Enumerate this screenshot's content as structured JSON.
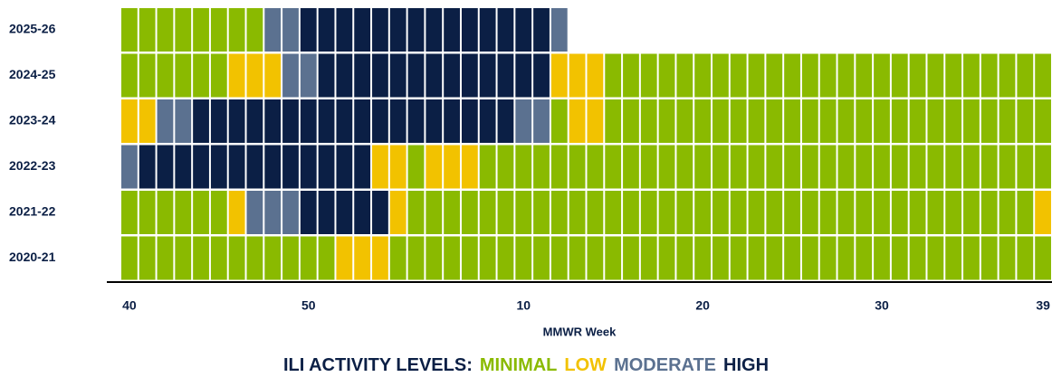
{
  "chart_data": {
    "type": "heatmap",
    "xlabel": "MMWR Week",
    "legend_title": "ILI ACTIVITY LEVELS:",
    "levels": [
      {
        "name": "MINIMAL",
        "color": "#8aba00"
      },
      {
        "name": "LOW",
        "color": "#f2c200"
      },
      {
        "name": "MODERATE",
        "color": "#5b7190"
      },
      {
        "name": "HIGH",
        "color": "#0b1f45"
      }
    ],
    "xticks": [
      {
        "value": 0,
        "label": "40"
      },
      {
        "value": 10,
        "label": "50"
      },
      {
        "value": 22,
        "label": "10"
      },
      {
        "value": 32,
        "label": "20"
      },
      {
        "value": 42,
        "label": "30"
      },
      {
        "value": 51,
        "label": "39"
      }
    ],
    "rows": [
      {
        "name": "2025-26",
        "values": [
          0,
          0,
          0,
          0,
          0,
          0,
          0,
          0,
          2,
          2,
          3,
          3,
          3,
          3,
          3,
          3,
          3,
          3,
          3,
          3,
          3,
          3,
          3,
          3,
          2,
          null,
          null,
          null,
          null,
          null,
          null,
          null,
          null,
          null,
          null,
          null,
          null,
          null,
          null,
          null,
          null,
          null,
          null,
          null,
          null,
          null,
          null,
          null,
          null,
          null,
          null,
          null
        ]
      },
      {
        "name": "2024-25",
        "values": [
          0,
          0,
          0,
          0,
          0,
          0,
          1,
          1,
          1,
          2,
          2,
          3,
          3,
          3,
          3,
          3,
          3,
          3,
          3,
          3,
          3,
          3,
          3,
          3,
          1,
          1,
          1,
          0,
          0,
          0,
          0,
          0,
          0,
          0,
          0,
          0,
          0,
          0,
          0,
          0,
          0,
          0,
          0,
          0,
          0,
          0,
          0,
          0,
          0,
          0,
          0,
          0
        ]
      },
      {
        "name": "2023-24",
        "values": [
          1,
          1,
          2,
          2,
          3,
          3,
          3,
          3,
          3,
          3,
          3,
          3,
          3,
          3,
          3,
          3,
          3,
          3,
          3,
          3,
          3,
          3,
          2,
          2,
          0,
          1,
          1,
          0,
          0,
          0,
          0,
          0,
          0,
          0,
          0,
          0,
          0,
          0,
          0,
          0,
          0,
          0,
          0,
          0,
          0,
          0,
          0,
          0,
          0,
          0,
          0,
          0
        ]
      },
      {
        "name": "2022-23",
        "values": [
          2,
          3,
          3,
          3,
          3,
          3,
          3,
          3,
          3,
          3,
          3,
          3,
          3,
          3,
          1,
          1,
          0,
          1,
          1,
          1,
          0,
          0,
          0,
          0,
          0,
          0,
          0,
          0,
          0,
          0,
          0,
          0,
          0,
          0,
          0,
          0,
          0,
          0,
          0,
          0,
          0,
          0,
          0,
          0,
          0,
          0,
          0,
          0,
          0,
          0,
          0,
          0
        ]
      },
      {
        "name": "2021-22",
        "values": [
          0,
          0,
          0,
          0,
          0,
          0,
          1,
          2,
          2,
          2,
          3,
          3,
          3,
          3,
          3,
          1,
          0,
          0,
          0,
          0,
          0,
          0,
          0,
          0,
          0,
          0,
          0,
          0,
          0,
          0,
          0,
          0,
          0,
          0,
          0,
          0,
          0,
          0,
          0,
          0,
          0,
          0,
          0,
          0,
          0,
          0,
          0,
          0,
          0,
          0,
          0,
          1
        ]
      },
      {
        "name": "2020-21",
        "values": [
          0,
          0,
          0,
          0,
          0,
          0,
          0,
          0,
          0,
          0,
          0,
          0,
          1,
          1,
          1,
          0,
          0,
          0,
          0,
          0,
          0,
          0,
          0,
          0,
          0,
          0,
          0,
          0,
          0,
          0,
          0,
          0,
          0,
          0,
          0,
          0,
          0,
          0,
          0,
          0,
          0,
          0,
          0,
          0,
          0,
          0,
          0,
          0,
          0,
          0,
          0,
          0
        ]
      }
    ]
  }
}
